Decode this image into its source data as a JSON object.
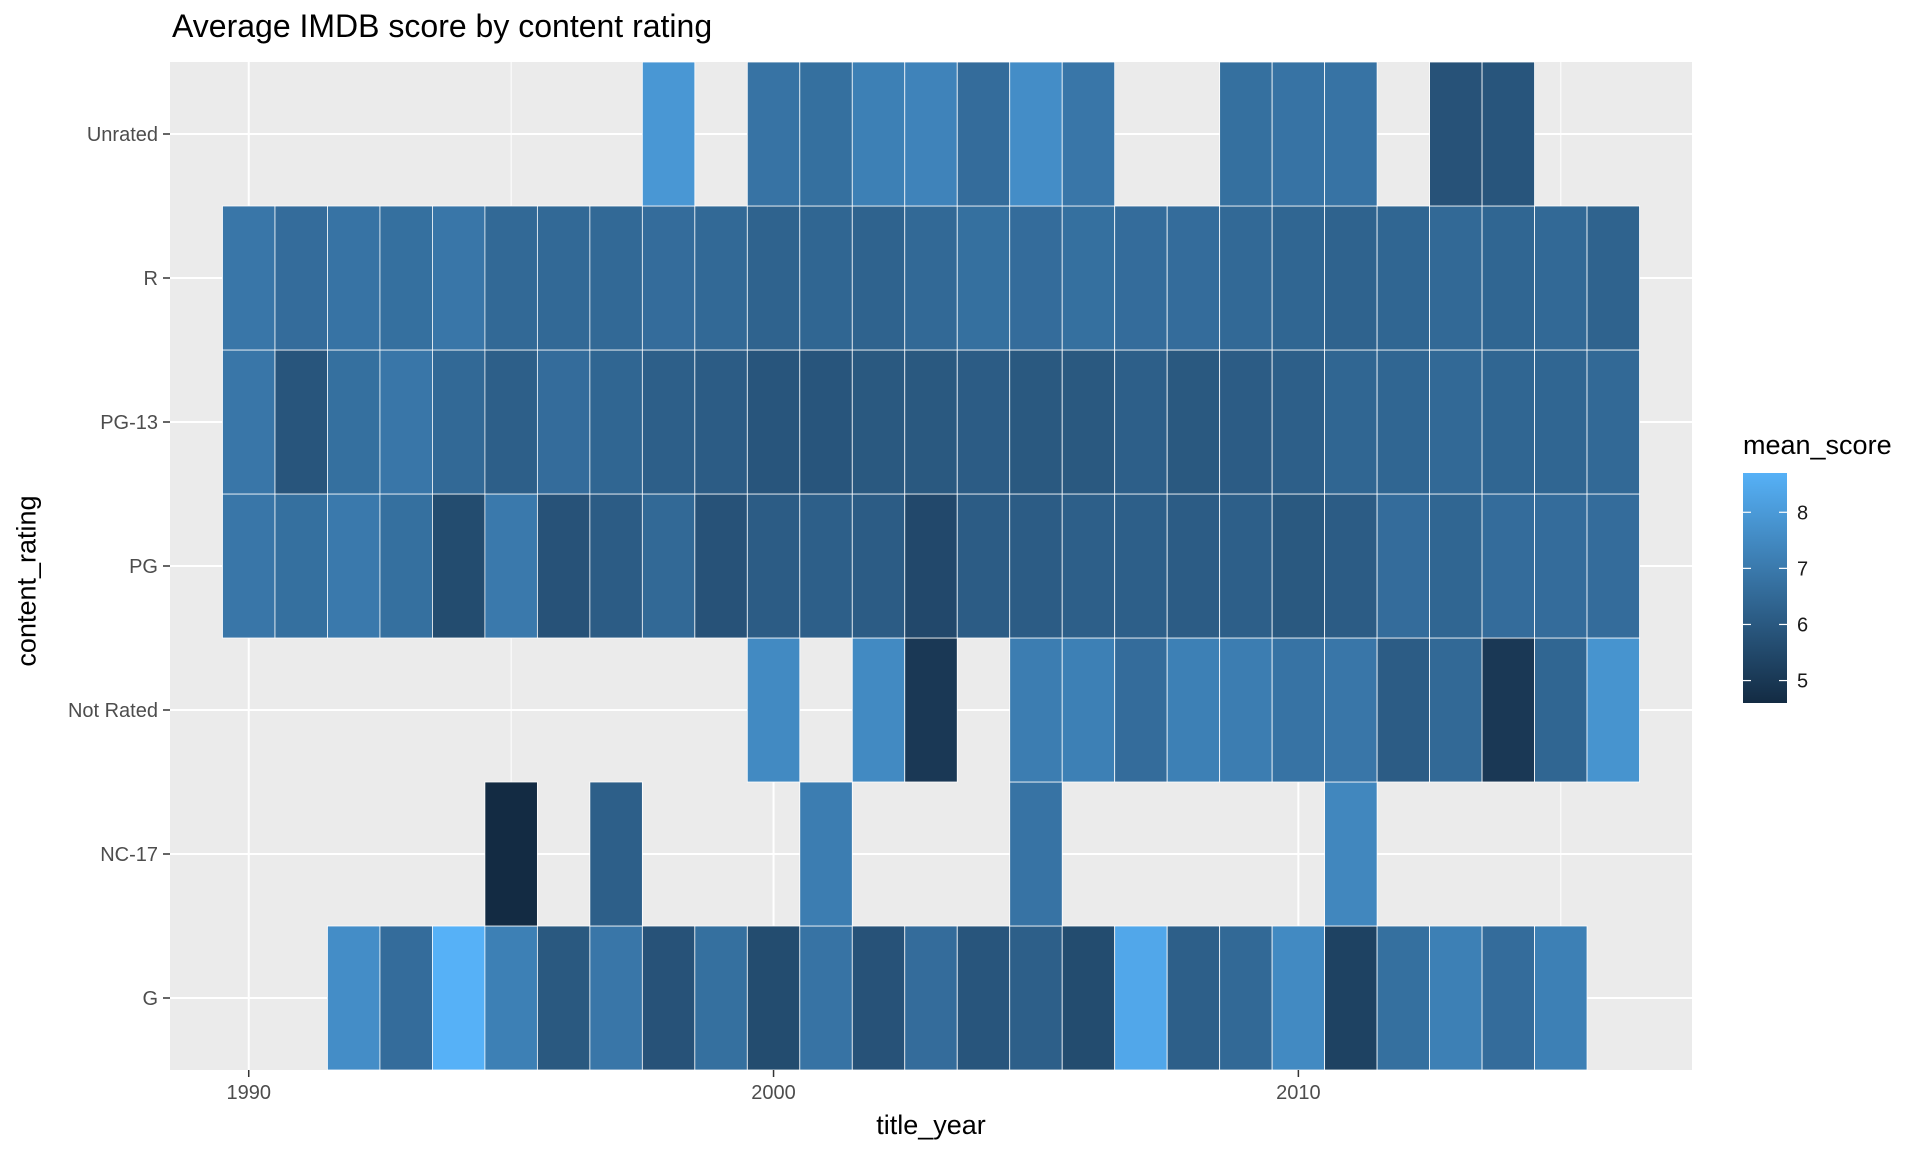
{
  "chart_data": {
    "type": "heatmap",
    "title": "Average IMDB score by content rating",
    "xlabel": "title_year",
    "ylabel": "content_rating",
    "x_ticks": [
      1990,
      2000,
      2010
    ],
    "xlim": [
      1988.5,
      2017.5
    ],
    "categories_y": [
      "G",
      "NC-17",
      "Not Rated",
      "PG",
      "PG-13",
      "R",
      "Unrated"
    ],
    "legend": {
      "title": "mean_score",
      "ticks": [
        5,
        6,
        7,
        8
      ],
      "range": [
        4.6,
        8.7
      ],
      "low_color": "#132B43",
      "high_color": "#56B1F7",
      "position": "right"
    },
    "grid": true,
    "panel_background": "#EBEBEB",
    "series": [
      {
        "name": "G",
        "x": [
          1992,
          1993,
          1994,
          1995,
          1996,
          1997,
          1998,
          1999,
          2000,
          2001,
          2002,
          2003,
          2004,
          2005,
          2006,
          2007,
          2008,
          2009,
          2010,
          2011,
          2012,
          2013,
          2014,
          2015
        ],
        "values": [
          7.6,
          6.6,
          8.7,
          7.2,
          6.0,
          6.9,
          5.8,
          6.7,
          5.6,
          6.8,
          5.8,
          6.6,
          5.9,
          6.2,
          5.6,
          8.4,
          6.2,
          6.5,
          7.5,
          5.3,
          6.7,
          7.2,
          6.6,
          7.2
        ]
      },
      {
        "name": "NC-17",
        "x": [
          1995,
          1997,
          2001,
          2005,
          2011
        ],
        "values": [
          4.6,
          6.2,
          7.1,
          6.8,
          7.4
        ]
      },
      {
        "name": "Not Rated",
        "x": [
          2000,
          2002,
          2003,
          2005,
          2006,
          2007,
          2008,
          2009,
          2010,
          2011,
          2012,
          2013,
          2014,
          2015,
          2016
        ],
        "values": [
          7.5,
          7.5,
          5.0,
          7.1,
          7.2,
          6.6,
          7.2,
          7.1,
          6.8,
          6.9,
          6.1,
          6.5,
          5.0,
          6.4,
          7.8
        ]
      },
      {
        "name": "PG",
        "x": [
          1990,
          1991,
          1992,
          1993,
          1994,
          1995,
          1996,
          1997,
          1998,
          1999,
          2000,
          2001,
          2002,
          2003,
          2004,
          2005,
          2006,
          2007,
          2008,
          2009,
          2010,
          2011,
          2012,
          2013,
          2014,
          2015,
          2016
        ],
        "values": [
          6.9,
          6.7,
          7.0,
          6.7,
          5.6,
          7.0,
          5.8,
          6.1,
          6.5,
          5.8,
          6.1,
          6.2,
          6.1,
          5.5,
          6.1,
          6.1,
          6.2,
          6.2,
          6.1,
          6.2,
          6.0,
          6.1,
          6.6,
          6.4,
          6.6,
          6.6,
          6.6
        ]
      },
      {
        "name": "PG-13",
        "x": [
          1990,
          1991,
          1992,
          1993,
          1994,
          1995,
          1996,
          1997,
          1998,
          1999,
          2000,
          2001,
          2002,
          2003,
          2004,
          2005,
          2006,
          2007,
          2008,
          2009,
          2010,
          2011,
          2012,
          2013,
          2014,
          2015,
          2016
        ],
        "values": [
          6.9,
          5.9,
          6.7,
          6.9,
          6.5,
          6.2,
          6.6,
          6.4,
          6.2,
          6.1,
          5.9,
          5.9,
          6.0,
          6.0,
          6.1,
          6.0,
          6.0,
          6.2,
          6.0,
          6.1,
          6.2,
          6.4,
          6.4,
          6.5,
          6.4,
          6.4,
          6.5
        ]
      },
      {
        "name": "R",
        "x": [
          1990,
          1991,
          1992,
          1993,
          1994,
          1995,
          1996,
          1997,
          1998,
          1999,
          2000,
          2001,
          2002,
          2003,
          2004,
          2005,
          2006,
          2007,
          2008,
          2009,
          2010,
          2011,
          2012,
          2013,
          2014,
          2015,
          2016
        ],
        "values": [
          6.9,
          6.6,
          6.8,
          6.7,
          6.9,
          6.5,
          6.5,
          6.5,
          6.6,
          6.5,
          6.3,
          6.4,
          6.3,
          6.5,
          6.7,
          6.6,
          6.7,
          6.6,
          6.6,
          6.5,
          6.4,
          6.3,
          6.4,
          6.5,
          6.4,
          6.5,
          6.3
        ]
      },
      {
        "name": "Unrated",
        "x": [
          1998,
          2000,
          2001,
          2002,
          2003,
          2004,
          2005,
          2006,
          2009,
          2010,
          2011,
          2013,
          2014
        ],
        "values": [
          7.9,
          6.8,
          6.7,
          7.2,
          7.3,
          6.6,
          7.6,
          6.9,
          6.7,
          6.8,
          6.8,
          5.8,
          5.9
        ]
      }
    ]
  }
}
